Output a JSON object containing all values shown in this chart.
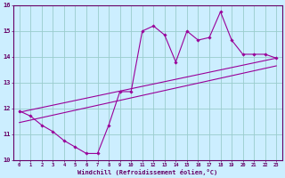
{
  "title": "",
  "xlabel": "Windchill (Refroidissement éolien,°C)",
  "bg_color": "#cceeff",
  "line_color": "#990099",
  "grid_color": "#99cccc",
  "axis_color": "#660066",
  "tick_color": "#660066",
  "xlim": [
    -0.5,
    23.5
  ],
  "ylim": [
    10,
    16
  ],
  "xticks": [
    0,
    1,
    2,
    3,
    4,
    5,
    6,
    7,
    8,
    9,
    10,
    11,
    12,
    13,
    14,
    15,
    16,
    17,
    18,
    19,
    20,
    21,
    22,
    23
  ],
  "yticks": [
    10,
    11,
    12,
    13,
    14,
    15,
    16
  ],
  "data_x": [
    0,
    1,
    2,
    3,
    4,
    5,
    6,
    7,
    8,
    9,
    10,
    11,
    12,
    13,
    14,
    15,
    16,
    17,
    18,
    19,
    20,
    21,
    22,
    23
  ],
  "data_y": [
    11.9,
    11.7,
    11.35,
    11.1,
    10.75,
    10.5,
    10.25,
    10.25,
    11.35,
    12.65,
    12.65,
    15.0,
    15.2,
    14.85,
    13.8,
    15.0,
    14.65,
    14.75,
    15.75,
    14.65,
    14.1,
    14.1,
    14.1,
    13.95
  ],
  "line1_x": [
    0,
    23
  ],
  "line1_y": [
    11.45,
    13.65
  ],
  "line2_x": [
    0,
    23
  ],
  "line2_y": [
    11.85,
    13.95
  ]
}
